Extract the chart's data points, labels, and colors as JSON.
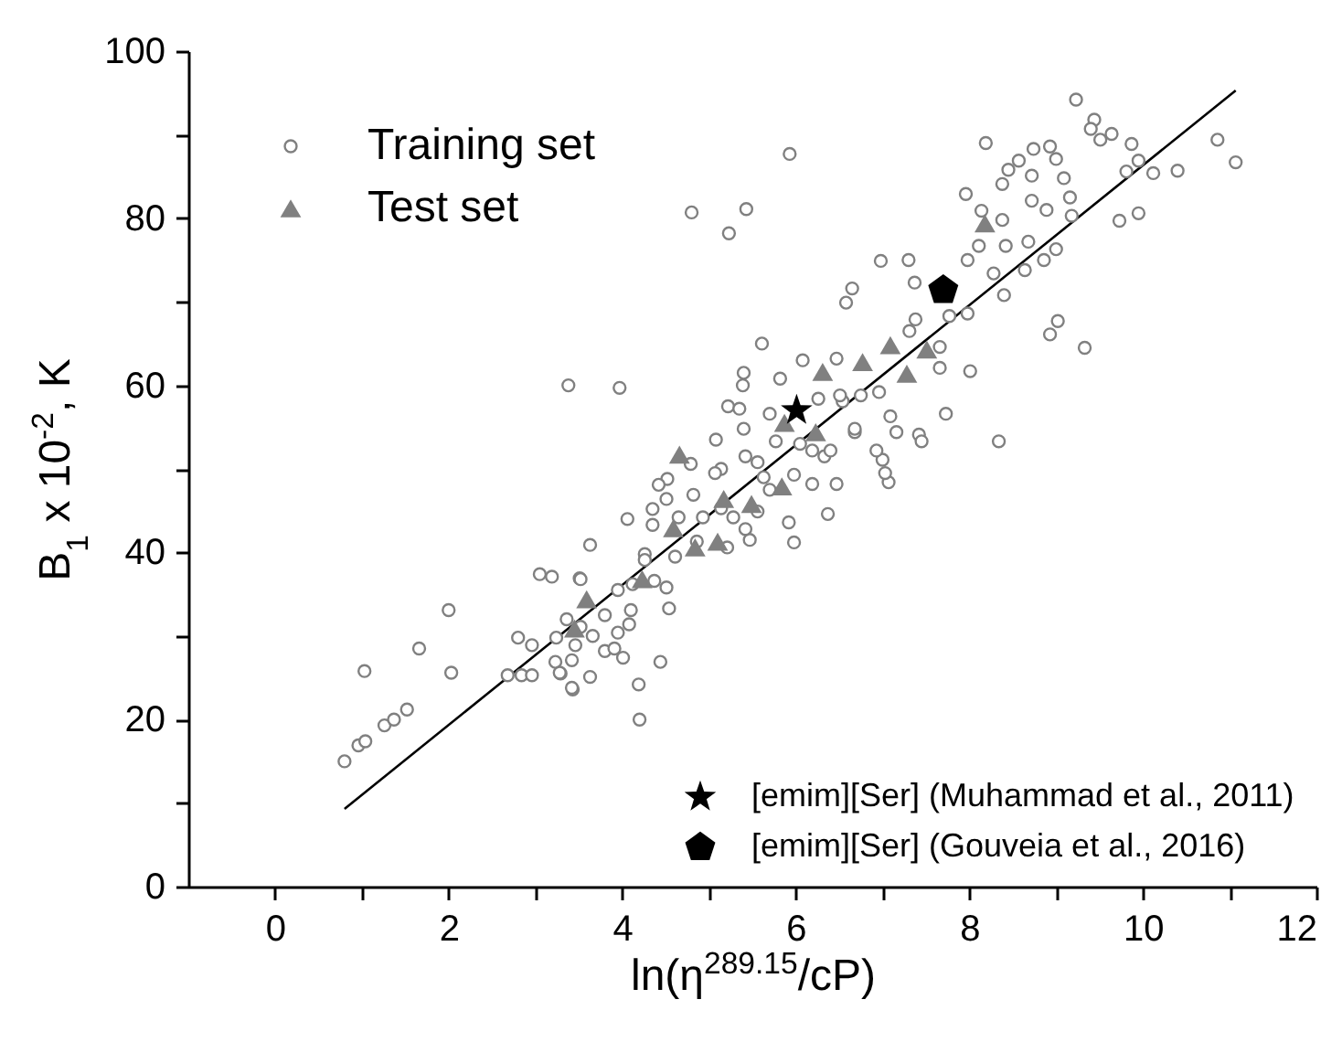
{
  "chart_data": {
    "type": "scatter",
    "xlabel": "ln(η$^{289.15}$/cP)",
    "ylabel": "B$_{1}$ x 10$^{-2}$, K",
    "xlim": [
      -1,
      12
    ],
    "xticks": [
      0,
      {
        "value": 1,
        "label": null
      },
      2,
      {
        "value": 3,
        "label": null
      },
      4,
      {
        "value": 5,
        "label": null
      },
      6,
      {
        "value": 7,
        "label": null
      },
      8,
      {
        "value": 9,
        "label": null
      },
      10,
      {
        "value": 11,
        "label": null
      },
      12
    ],
    "ylim": [
      0,
      100
    ],
    "yticks": [
      0,
      {
        "value": 10,
        "label": null
      },
      20,
      {
        "value": 30,
        "label": null
      },
      40,
      {
        "value": 50,
        "label": null
      },
      60,
      {
        "value": 70,
        "label": null
      },
      80,
      {
        "value": 90,
        "label": null
      },
      100
    ],
    "legend": "bottom right",
    "series": [
      {
        "type": "line",
        "color": "#000000",
        "marker": "none",
        "line_style": "solid",
        "x": [
          0.8,
          11.07
        ],
        "values": [
          9.3,
          95.3
        ]
      },
      {
        "name": "Training set",
        "color": "#808080",
        "marker": "circle",
        "x": [
          0.8,
          0.96,
          1.04,
          1.03,
          1.26,
          1.37,
          1.52,
          1.66,
          2.0,
          2.03,
          2.68,
          2.84,
          2.96,
          2.8,
          2.96,
          3.05,
          3.19,
          3.24,
          3.23,
          3.29,
          3.43,
          3.36,
          3.51,
          3.38,
          3.97,
          5.4,
          5.39,
          5.82,
          5.22,
          5.35,
          5.4,
          5.08,
          4.79,
          4.52,
          4.42,
          4.82,
          5.14,
          5.42,
          5.56,
          5.98,
          6.19,
          6.37,
          5.92,
          5.98,
          5.47,
          5.21,
          4.35,
          4.06,
          4.35,
          4.26,
          3.63,
          3.52,
          3.95,
          4.1,
          4.54,
          4.51,
          4.37,
          4.08,
          3.8,
          3.66,
          3.8,
          4.01,
          4.44,
          4.19,
          4.2,
          3.42,
          3.28,
          3.63,
          3.42,
          3.46,
          3.91,
          3.52,
          3.95,
          4.12,
          4.26,
          4.61,
          4.86,
          4.93,
          5.14,
          5.28,
          5.56,
          5.42,
          5.7,
          5.07,
          4.51,
          4.65,
          5.63,
          5.77,
          6.05,
          6.33,
          6.47,
          6.68,
          6.54,
          6.26,
          6.98,
          7.3,
          6.58,
          6.65,
          7.37,
          8.11,
          8.42,
          7.98,
          8.28,
          8.4,
          8.68,
          8.64,
          9.0,
          8.86,
          8.93,
          9.02,
          9.33,
          8.01,
          7.73,
          8.34,
          7.66,
          7.38,
          7.77,
          7.98,
          7.66,
          7.31,
          7.09,
          7.16,
          7.42,
          7.45,
          7.07,
          7.03,
          7.0,
          6.93,
          6.96,
          6.75,
          6.51,
          6.47,
          6.08,
          5.61,
          5.7,
          6.19,
          6.4,
          6.68,
          9.23,
          9.44,
          9.4,
          9.51,
          9.64,
          9.87,
          8.19,
          8.74,
          8.93,
          9.0,
          8.57,
          8.45,
          8.38,
          8.72,
          9.09,
          9.16,
          8.72,
          8.89,
          7.96,
          8.14,
          8.38,
          9.18,
          9.95,
          9.81,
          10.12,
          10.4,
          10.86,
          11.07,
          9.73,
          9.95,
          5.93,
          4.8,
          5.43,
          5.23
        ],
        "values": [
          15.0,
          16.9,
          17.4,
          25.8,
          19.3,
          20.0,
          21.2,
          28.5,
          33.1,
          25.6,
          25.3,
          25.3,
          25.3,
          29.8,
          28.9,
          37.4,
          37.1,
          29.8,
          26.9,
          25.5,
          23.6,
          32.0,
          36.9,
          60.0,
          59.7,
          61.5,
          60.0,
          60.8,
          57.5,
          57.2,
          54.8,
          53.5,
          50.6,
          48.8,
          48.1,
          46.9,
          50.0,
          51.5,
          50.8,
          49.3,
          48.2,
          44.6,
          43.6,
          41.2,
          41.5,
          40.6,
          45.2,
          44.0,
          43.3,
          39.8,
          40.9,
          36.8,
          35.5,
          33.1,
          33.3,
          35.8,
          36.6,
          31.4,
          32.5,
          30.0,
          28.2,
          27.4,
          26.9,
          24.2,
          20.0,
          23.8,
          25.6,
          25.1,
          27.1,
          28.9,
          28.5,
          31.1,
          30.4,
          36.2,
          39.1,
          39.5,
          41.3,
          44.2,
          45.3,
          44.2,
          44.9,
          42.8,
          47.5,
          49.5,
          46.4,
          44.2,
          49.0,
          53.3,
          53.0,
          51.5,
          48.2,
          54.4,
          58.1,
          58.4,
          74.9,
          75.0,
          69.9,
          71.6,
          72.3,
          76.7,
          76.7,
          75.0,
          73.4,
          70.8,
          77.2,
          73.8,
          76.3,
          75.0,
          66.1,
          67.7,
          64.5,
          61.7,
          56.6,
          53.3,
          62.1,
          67.9,
          68.3,
          68.6,
          64.6,
          66.5,
          56.3,
          54.4,
          54.1,
          53.3,
          48.4,
          49.5,
          51.1,
          52.2,
          59.2,
          58.8,
          58.8,
          63.2,
          63.0,
          65.0,
          56.6,
          52.2,
          52.2,
          54.8,
          94.2,
          91.8,
          90.7,
          89.4,
          90.1,
          88.9,
          89.0,
          88.3,
          88.6,
          87.1,
          86.9,
          85.8,
          84.1,
          85.1,
          84.8,
          82.5,
          82.1,
          81.0,
          82.9,
          80.9,
          79.8,
          80.3,
          86.9,
          85.6,
          85.4,
          85.7,
          89.4,
          86.7,
          79.7,
          80.6,
          87.7,
          80.7,
          81.1,
          78.2
        ]
      },
      {
        "name": "Test set",
        "color": "#808080",
        "marker": "triangle",
        "x": [
          4.66,
          6.31,
          5.87,
          6.23,
          5.17,
          5.49,
          5.84,
          4.59,
          4.84,
          5.1,
          4.23,
          3.59,
          3.45,
          8.18,
          7.09,
          6.77,
          7.51,
          7.28
        ],
        "values": [
          51.7,
          61.6,
          55.5,
          54.4,
          46.4,
          45.8,
          47.9,
          42.9,
          40.6,
          41.3,
          36.8,
          34.4,
          30.9,
          79.4,
          64.8,
          62.8,
          64.3,
          61.4
        ]
      },
      {
        "name": "[emim][Ser] (Muhammad et al., 2011)",
        "color": "#000000",
        "marker": "star",
        "x": [
          6.01
        ],
        "values": [
          57.0
        ]
      },
      {
        "name": "[emim][Ser] (Gouveia et al., 2016)",
        "color": "#000000",
        "x": [
          7.7
        ],
        "values": [
          71.4
        ]
      }
    ]
  }
}
